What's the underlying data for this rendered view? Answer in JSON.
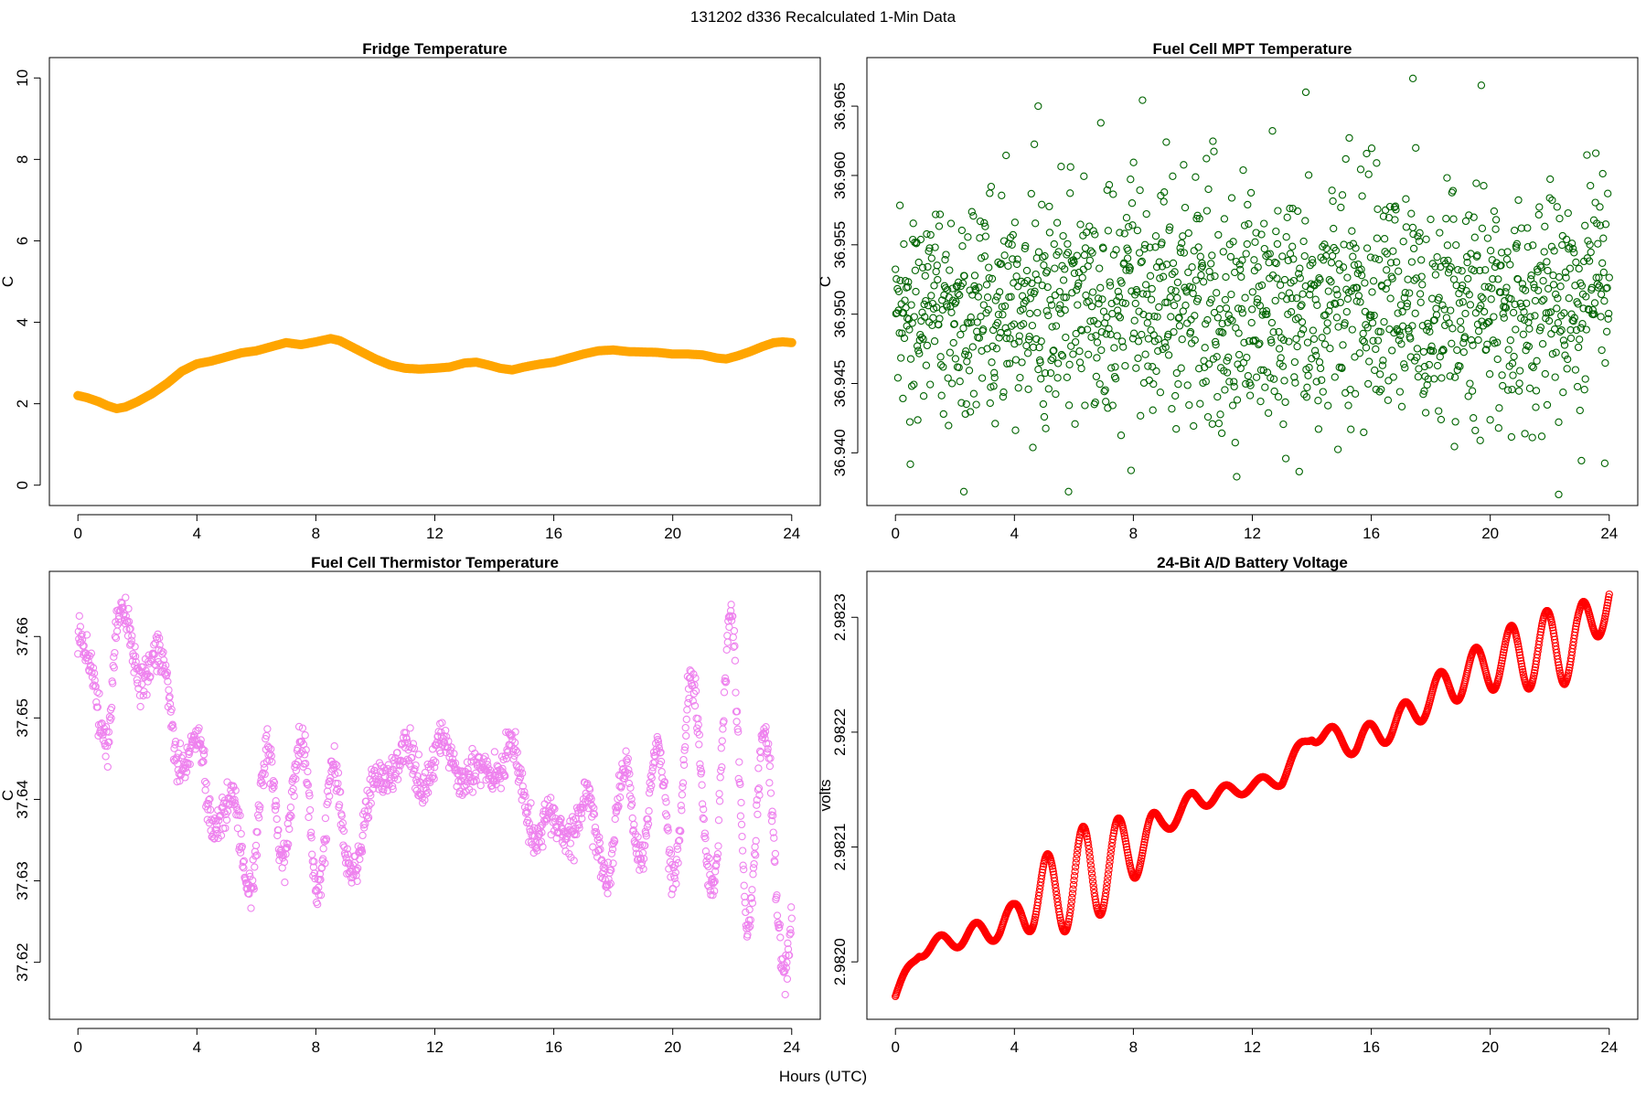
{
  "figure": {
    "title": "131202   d336   Recalculated 1-Min Data",
    "xlabel": "Hours (UTC)"
  },
  "chart_data": [
    {
      "type": "line",
      "title": "Fridge Temperature",
      "ylabel": "C",
      "color": "#ffa500",
      "xlim": [
        -0.96,
        24.96
      ],
      "ylim": [
        -0.5,
        10.5
      ],
      "xticks": [
        0,
        4,
        8,
        12,
        16,
        20,
        24
      ],
      "yticks": [
        0,
        2,
        4,
        6,
        8,
        10
      ],
      "ytick_labels": [
        "0",
        "2",
        "4",
        "6",
        "8",
        "10"
      ],
      "x": [
        0,
        0.3,
        0.7,
        1.0,
        1.3,
        1.6,
        2.0,
        2.5,
        3.0,
        3.5,
        4.0,
        4.5,
        5.0,
        5.5,
        6.0,
        6.5,
        7.0,
        7.5,
        8.0,
        8.5,
        8.8,
        9.2,
        9.6,
        10.0,
        10.5,
        11.0,
        11.5,
        12.0,
        12.5,
        13.0,
        13.4,
        13.8,
        14.2,
        14.6,
        15.0,
        15.5,
        16.0,
        16.5,
        17.0,
        17.5,
        18.0,
        18.5,
        19.0,
        19.5,
        20.0,
        20.5,
        21.0,
        21.5,
        21.8,
        22.2,
        22.6,
        23.0,
        23.4,
        23.7,
        24.0
      ],
      "values": [
        2.2,
        2.15,
        2.05,
        1.95,
        1.88,
        1.92,
        2.05,
        2.25,
        2.5,
        2.8,
        2.98,
        3.05,
        3.15,
        3.25,
        3.3,
        3.4,
        3.5,
        3.45,
        3.52,
        3.6,
        3.55,
        3.4,
        3.25,
        3.1,
        2.95,
        2.87,
        2.85,
        2.87,
        2.9,
        3.0,
        3.02,
        2.95,
        2.87,
        2.83,
        2.9,
        2.97,
        3.02,
        3.12,
        3.22,
        3.3,
        3.32,
        3.28,
        3.27,
        3.26,
        3.22,
        3.22,
        3.2,
        3.12,
        3.1,
        3.18,
        3.28,
        3.4,
        3.5,
        3.52,
        3.5
      ]
    },
    {
      "type": "scatter",
      "title": "Fuel Cell MPT Temperature",
      "ylabel": "C",
      "color": "#006400",
      "xlim": [
        -0.96,
        24.96
      ],
      "ylim": [
        36.9362,
        36.9685
      ],
      "xticks": [
        0,
        4,
        8,
        12,
        16,
        20,
        24
      ],
      "yticks": [
        36.94,
        36.945,
        36.95,
        36.955,
        36.96,
        36.965
      ],
      "ytick_labels": [
        "36.940",
        "36.945",
        "36.950",
        "36.955",
        "36.960",
        "36.965"
      ],
      "n_points": 1440,
      "series_model": {
        "kind": "noise",
        "mean": 36.9505,
        "sd": 0.0045,
        "min": 36.937,
        "max": 36.967
      },
      "notable_points": [
        [
          4.8,
          36.965
        ],
        [
          13.8,
          36.966
        ],
        [
          17.4,
          36.967
        ],
        [
          19.7,
          36.9665
        ],
        [
          22.3,
          36.937
        ],
        [
          2.3,
          36.9372
        ]
      ]
    },
    {
      "type": "scatter",
      "title": "Fuel Cell Thermistor Temperature",
      "ylabel": "C",
      "color": "#ee82ee",
      "xlim": [
        -0.96,
        24.96
      ],
      "ylim": [
        37.613,
        37.668
      ],
      "xticks": [
        0,
        4,
        8,
        12,
        16,
        20,
        24
      ],
      "yticks": [
        37.62,
        37.63,
        37.64,
        37.65,
        37.66
      ],
      "ytick_labels": [
        "37.62",
        "37.63",
        "37.64",
        "37.65",
        "37.66"
      ],
      "n_points": 1440,
      "series_model": {
        "kind": "trend+oscillation",
        "trend_x": [
          0,
          0.3,
          0.7,
          1.0,
          1.3,
          1.6,
          2.0,
          2.5,
          3.0,
          3.3,
          3.7,
          4.2,
          4.6,
          5.0,
          5.5,
          6.0,
          6.5,
          7.0,
          7.5,
          8.0,
          8.5,
          9.0,
          9.5,
          10.0,
          10.5,
          11.0,
          11.5,
          12.0,
          12.5,
          13.0,
          13.5,
          14.0,
          14.5,
          15.0,
          15.5,
          16.0,
          16.5,
          17.0,
          17.5,
          18.0,
          18.5,
          19.0,
          19.5,
          20.0,
          20.5,
          21.0,
          21.5,
          22.0,
          22.5,
          23.0,
          23.5,
          24.0
        ],
        "trend_y": [
          37.659,
          37.656,
          37.652,
          37.648,
          37.66,
          37.661,
          37.657,
          37.656,
          37.655,
          37.648,
          37.643,
          37.645,
          37.641,
          37.634,
          37.638,
          37.634,
          37.64,
          37.643,
          37.635,
          37.64,
          37.64,
          37.633,
          37.635,
          37.64,
          37.646,
          37.645,
          37.642,
          37.646,
          37.645,
          37.644,
          37.641,
          37.645,
          37.646,
          37.64,
          37.637,
          37.635,
          37.639,
          37.636,
          37.637,
          37.634,
          37.64,
          37.639,
          37.639,
          37.637,
          37.648,
          37.64,
          37.638,
          37.655,
          37.634,
          37.638,
          37.634,
          37.626
        ],
        "amplitude_x": [
          0,
          2,
          4,
          8,
          9,
          12,
          16,
          20,
          24
        ],
        "amplitude_y": [
          0.002,
          0.002,
          0.004,
          0.012,
          0.003,
          0.002,
          0.003,
          0.008,
          0.012
        ],
        "period_hours": 1.2,
        "noise_sd": 0.0012
      }
    },
    {
      "type": "scatter",
      "title": "24-Bit A/D Battery Voltage",
      "ylabel": "volts",
      "color": "#ff0000",
      "xlim": [
        -0.96,
        24.96
      ],
      "ylim": [
        2.98195,
        2.98234
      ],
      "xticks": [
        0,
        4,
        8,
        12,
        16,
        20,
        24
      ],
      "yticks": [
        2.982,
        2.9821,
        2.9822,
        2.9823
      ],
      "ytick_labels": [
        "2.9820",
        "2.9821",
        "2.9822",
        "2.9823"
      ],
      "n_points": 1440,
      "series_model": {
        "kind": "trend+oscillation",
        "trend_x": [
          0,
          0.8,
          2,
          3.5,
          4.5,
          6,
          7.5,
          8.5,
          10,
          11.5,
          13,
          14,
          15.5,
          17,
          18.5,
          20,
          21.5,
          23,
          24
        ],
        "trend_y": [
          2.98197,
          2.98201,
          2.98202,
          2.98203,
          2.98205,
          2.98207,
          2.98209,
          2.98211,
          2.98214,
          2.98215,
          2.98216,
          2.9822,
          2.98219,
          2.98221,
          2.98224,
          2.98226,
          2.98227,
          2.98228,
          2.98232
        ],
        "amplitude_x": [
          0,
          2,
          4,
          5,
          6.5,
          8,
          9,
          12,
          14,
          16,
          18,
          19.5,
          21,
          22.5,
          24
        ],
        "amplitude_y": [
          5e-06,
          8e-06,
          1.2e-05,
          3.5e-05,
          4.5e-05,
          3e-05,
          1e-05,
          5e-06,
          8e-06,
          1.2e-05,
          1.5e-05,
          2e-05,
          3e-05,
          3.5e-05,
          2e-05
        ],
        "period_hours": 1.2
      }
    }
  ]
}
